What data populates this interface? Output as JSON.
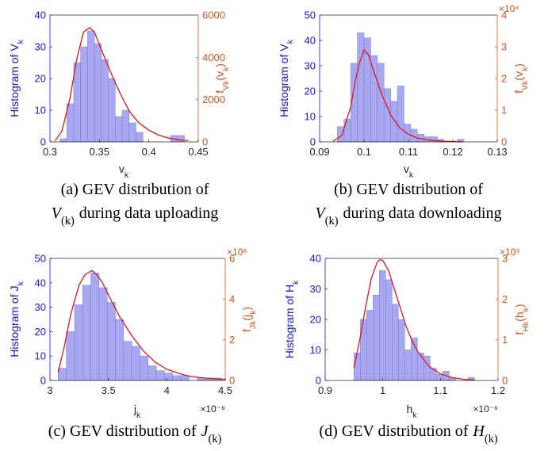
{
  "colors": {
    "bars": "#9999ee",
    "bar_edge": "#7777dd",
    "curve": "#e0161b",
    "left_axis": "#1515e6",
    "right_axis": "#d95319",
    "axis": "#262626"
  },
  "chart_data": [
    {
      "type": "bar",
      "panel": "a",
      "caption_line1": "(a) GEV distribution of",
      "caption_line2_math": "V(k)",
      "caption_line2_text": "during data uploading",
      "xlabel": "v_k",
      "ylabel_left": "Histogram of V_k",
      "ylabel_right": "f_Vk(v_k)",
      "xlim": [
        0.3,
        0.45
      ],
      "ylim_left": [
        0,
        40
      ],
      "ylim_right": [
        0,
        6000
      ],
      "xticks": [
        "0.3",
        "0.35",
        "0.4",
        "0.45"
      ],
      "xtick_values": [
        0.3,
        0.35,
        0.4,
        0.45
      ],
      "yticks_left": [
        "0",
        "10",
        "20",
        "30",
        "40"
      ],
      "ytick_left_values": [
        0,
        10,
        20,
        30,
        40
      ],
      "yticks_right": [
        "0",
        "2000",
        "4000",
        "6000"
      ],
      "ytick_right_values": [
        0,
        2000,
        4000,
        6000
      ],
      "x_exponent": "",
      "right_exponent": "",
      "bin_edges": [
        0.31,
        0.317,
        0.324,
        0.331,
        0.338,
        0.345,
        0.352,
        0.359,
        0.366,
        0.373,
        0.38,
        0.387,
        0.394,
        0.401,
        0.408,
        0.415,
        0.422,
        0.429,
        0.436
      ],
      "histogram_counts": [
        1,
        12,
        25,
        30,
        35,
        31,
        26,
        20,
        8,
        10,
        6,
        3,
        0,
        0,
        0,
        0,
        2,
        2
      ],
      "pdf_x": [
        0.305,
        0.312,
        0.32,
        0.327,
        0.334,
        0.34,
        0.345,
        0.35,
        0.357,
        0.365,
        0.373,
        0.381,
        0.39,
        0.4,
        0.41,
        0.42,
        0.43,
        0.44
      ],
      "pdf_y": [
        50,
        500,
        2000,
        3900,
        5200,
        5400,
        5200,
        4600,
        3800,
        2900,
        2100,
        1400,
        900,
        550,
        320,
        180,
        100,
        60
      ]
    },
    {
      "type": "bar",
      "panel": "b",
      "caption_line1": "(b) GEV distribution of",
      "caption_line2_math": "V(k)",
      "caption_line2_text": "during data downloading",
      "xlabel": "v_k",
      "ylabel_left": "Histogram of V_k",
      "ylabel_right": "f_Vk(v_k)",
      "xlim": [
        0.09,
        0.13
      ],
      "ylim_left": [
        0,
        50
      ],
      "ylim_right": [
        0,
        4
      ],
      "xticks": [
        "0.09",
        "0.1",
        "0.11",
        "0.12",
        "0.13"
      ],
      "xtick_values": [
        0.09,
        0.1,
        0.11,
        0.12,
        0.13
      ],
      "yticks_left": [
        "0",
        "10",
        "20",
        "30",
        "40",
        "50"
      ],
      "ytick_left_values": [
        0,
        10,
        20,
        30,
        40,
        50
      ],
      "yticks_right": [
        "0",
        "1",
        "2",
        "3",
        "4"
      ],
      "ytick_right_values": [
        0,
        1,
        2,
        3,
        4
      ],
      "x_exponent": "",
      "right_exponent": "×10⁴",
      "bin_edges": [
        0.094,
        0.0955,
        0.097,
        0.0985,
        0.1,
        0.1015,
        0.103,
        0.1045,
        0.106,
        0.1075,
        0.109,
        0.1105,
        0.112,
        0.1135,
        0.115,
        0.1165,
        0.118,
        0.1195,
        0.121,
        0.1225
      ],
      "histogram_counts": [
        6,
        9,
        31,
        43,
        41,
        34,
        31,
        21,
        16,
        22,
        7,
        5,
        3,
        2,
        2,
        1,
        0,
        0,
        1
      ],
      "pdf_x": [
        0.093,
        0.095,
        0.097,
        0.098,
        0.099,
        0.1,
        0.101,
        0.102,
        0.104,
        0.106,
        0.108,
        0.11,
        0.112,
        0.115,
        0.118,
        0.122
      ],
      "pdf_y": [
        0.02,
        0.2,
        1.1,
        1.9,
        2.5,
        2.9,
        2.75,
        2.3,
        1.5,
        0.85,
        0.45,
        0.24,
        0.12,
        0.05,
        0.02,
        0.005
      ]
    },
    {
      "type": "bar",
      "panel": "c",
      "caption_line1": "(c) GEV distribution of",
      "caption_line1_math": "J(k)",
      "xlabel": "j_k",
      "ylabel_left": "Histogram of J_k",
      "ylabel_right": "f_Jk(j_k)",
      "xlim": [
        3.0,
        4.5
      ],
      "ylim_left": [
        0,
        50
      ],
      "ylim_right": [
        0,
        6
      ],
      "xticks": [
        "3",
        "3.5",
        "4",
        "4.5"
      ],
      "xtick_values": [
        3.0,
        3.5,
        4.0,
        4.5
      ],
      "yticks_left": [
        "0",
        "10",
        "20",
        "30",
        "40",
        "50"
      ],
      "ytick_left_values": [
        0,
        10,
        20,
        30,
        40,
        50
      ],
      "yticks_right": [
        "0",
        "2",
        "4",
        "6"
      ],
      "ytick_right_values": [
        0,
        2,
        4,
        6
      ],
      "x_exponent": "×10⁻⁶",
      "right_exponent": "×10⁸",
      "bin_edges": [
        3.07,
        3.14,
        3.21,
        3.28,
        3.35,
        3.42,
        3.49,
        3.56,
        3.63,
        3.7,
        3.77,
        3.84,
        3.91,
        3.98,
        4.05,
        4.12,
        4.19,
        4.26,
        4.33,
        4.4,
        4.47
      ],
      "histogram_counts": [
        5,
        20,
        31,
        39,
        44,
        38,
        32,
        25,
        16,
        14,
        10,
        6,
        4,
        3,
        2,
        2,
        0,
        1,
        1,
        1
      ],
      "pdf_x": [
        3.07,
        3.12,
        3.18,
        3.25,
        3.3,
        3.36,
        3.4,
        3.45,
        3.5,
        3.6,
        3.7,
        3.8,
        3.9,
        4.0,
        4.1,
        4.2,
        4.35,
        4.5
      ],
      "pdf_y": [
        0.4,
        1.6,
        3.3,
        4.7,
        5.2,
        5.4,
        5.2,
        4.8,
        4.2,
        3.1,
        2.2,
        1.45,
        0.9,
        0.55,
        0.35,
        0.2,
        0.1,
        0.05
      ]
    },
    {
      "type": "bar",
      "panel": "d",
      "caption_line1": "(d) GEV distribution of",
      "caption_line1_math": "H(k)",
      "xlabel": "h_k",
      "ylabel_left": "Histogram of H_k",
      "ylabel_right": "f_Hk(h_k)",
      "xlim": [
        0.9,
        1.2
      ],
      "ylim_left": [
        0,
        40
      ],
      "ylim_right": [
        0,
        3
      ],
      "xticks": [
        "0.9",
        "1",
        "1.1",
        "1.2"
      ],
      "xtick_values": [
        0.9,
        1.0,
        1.1,
        1.2
      ],
      "yticks_left": [
        "0",
        "10",
        "20",
        "30",
        "40"
      ],
      "ytick_left_values": [
        0,
        10,
        20,
        30,
        40
      ],
      "yticks_right": [
        "0",
        "1",
        "2",
        "3"
      ],
      "ytick_right_values": [
        0,
        1,
        2,
        3
      ],
      "x_exponent": "×10⁻⁶",
      "right_exponent": "×10⁹",
      "bin_edges": [
        0.95,
        0.961,
        0.972,
        0.983,
        0.994,
        1.005,
        1.016,
        1.027,
        1.038,
        1.049,
        1.06,
        1.071,
        1.082,
        1.093,
        1.104,
        1.115,
        1.126,
        1.137,
        1.148,
        1.159
      ],
      "histogram_counts": [
        9,
        20,
        23,
        28,
        36,
        33,
        25,
        20,
        10,
        14,
        9,
        8,
        4,
        2,
        3,
        1,
        0,
        0,
        1
      ],
      "pdf_x": [
        0.95,
        0.96,
        0.97,
        0.98,
        0.99,
        0.995,
        1.0,
        1.01,
        1.02,
        1.03,
        1.04,
        1.05,
        1.06,
        1.08,
        1.1,
        1.12,
        1.14,
        1.16
      ],
      "pdf_y": [
        0.3,
        1.0,
        1.8,
        2.5,
        2.9,
        2.97,
        2.95,
        2.7,
        2.25,
        1.8,
        1.35,
        1.0,
        0.72,
        0.35,
        0.16,
        0.07,
        0.03,
        0.01
      ]
    }
  ]
}
